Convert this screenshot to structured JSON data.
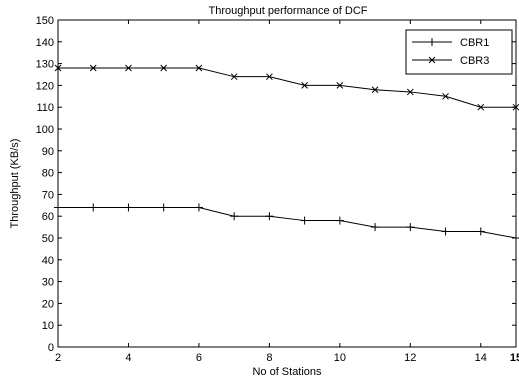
{
  "chart_data": {
    "type": "line",
    "title": "Throughput performance of DCF",
    "xlabel": "No of Stations",
    "ylabel": "Throughput (KB/s)",
    "xlim": [
      2,
      15
    ],
    "ylim": [
      0,
      150
    ],
    "x_ticks": [
      2,
      4,
      6,
      8,
      10,
      12,
      14,
      15
    ],
    "y_ticks": [
      0,
      10,
      20,
      30,
      40,
      50,
      60,
      70,
      80,
      90,
      100,
      110,
      120,
      130,
      140,
      150
    ],
    "grid": false,
    "legend_position": "top-right",
    "x": [
      2,
      3,
      4,
      5,
      6,
      7,
      8,
      9,
      10,
      11,
      12,
      13,
      14,
      15
    ],
    "series": [
      {
        "name": "CBR1",
        "marker": "plus",
        "values": [
          64,
          64,
          64,
          64,
          64,
          60,
          60,
          58,
          58,
          55,
          55,
          53,
          53,
          50
        ]
      },
      {
        "name": "CBR3",
        "marker": "x",
        "values": [
          128,
          128,
          128,
          128,
          128,
          124,
          124,
          120,
          120,
          118,
          117,
          115,
          110,
          110
        ]
      }
    ]
  }
}
